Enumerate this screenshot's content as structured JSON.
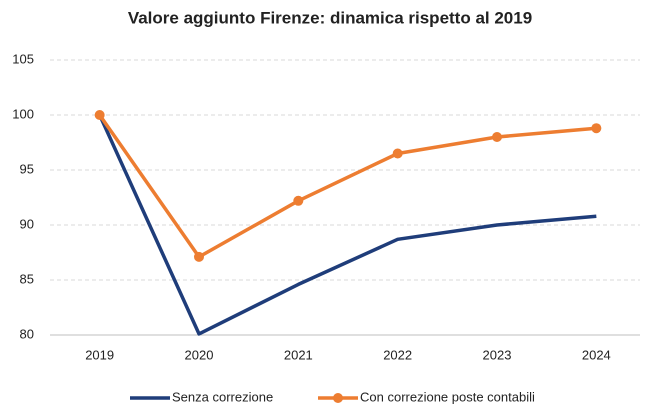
{
  "chart_data": {
    "type": "line",
    "title": "Valore aggiunto Firenze: dinamica rispetto al 2019",
    "categories": [
      "2019",
      "2020",
      "2021",
      "2022",
      "2023",
      "2024"
    ],
    "series": [
      {
        "name": "Senza correzione",
        "color": "#1f3d7a",
        "markers": false,
        "values": [
          100,
          80.1,
          84.6,
          88.7,
          90.0,
          90.8
        ]
      },
      {
        "name": "Con correzione poste contabili",
        "color": "#ed7d31",
        "markers": true,
        "values": [
          100,
          87.1,
          92.2,
          96.5,
          98.0,
          98.8
        ]
      }
    ],
    "ylim": [
      80,
      105
    ],
    "yticks": [
      80,
      85,
      90,
      95,
      100,
      105
    ],
    "grid": true,
    "legend": "bottom"
  }
}
